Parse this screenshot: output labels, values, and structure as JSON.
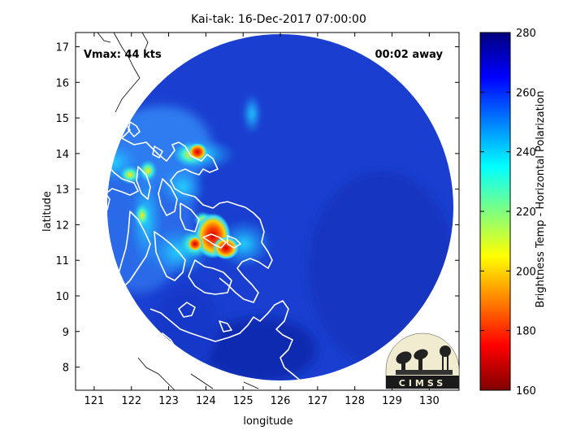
{
  "title": "Kai-tak: 16-Dec-2017 07:00:00",
  "vmax_label": "Vmax: 44 kts",
  "time_away": "00:02 away",
  "xlabel": "longitude",
  "ylabel": "latitude",
  "colorbar_label": "Brightness Temp - Horizontal Polarization",
  "logo_text": "CIMSS",
  "x_ticks": [
    "121",
    "122",
    "123",
    "124",
    "125",
    "126",
    "127",
    "128",
    "129",
    "130"
  ],
  "y_ticks": [
    "8",
    "9",
    "10",
    "11",
    "12",
    "13",
    "14",
    "15",
    "16",
    "17"
  ],
  "colorbar_ticks": [
    "280",
    "260",
    "240",
    "220",
    "200",
    "180",
    "160"
  ],
  "map": {
    "lon_range": [
      120.5,
      130.8
    ],
    "lat_range": [
      7.35,
      17.4
    ],
    "swath_center": [
      125.55,
      12.15
    ],
    "swath_radius_deg": 5.2,
    "colors": {
      "background": "#1a3fd0",
      "coast": "#ffffff",
      "land_outside": "#000000"
    }
  },
  "colorbar": {
    "min": 160,
    "max": 280,
    "colormap": "jet"
  }
}
